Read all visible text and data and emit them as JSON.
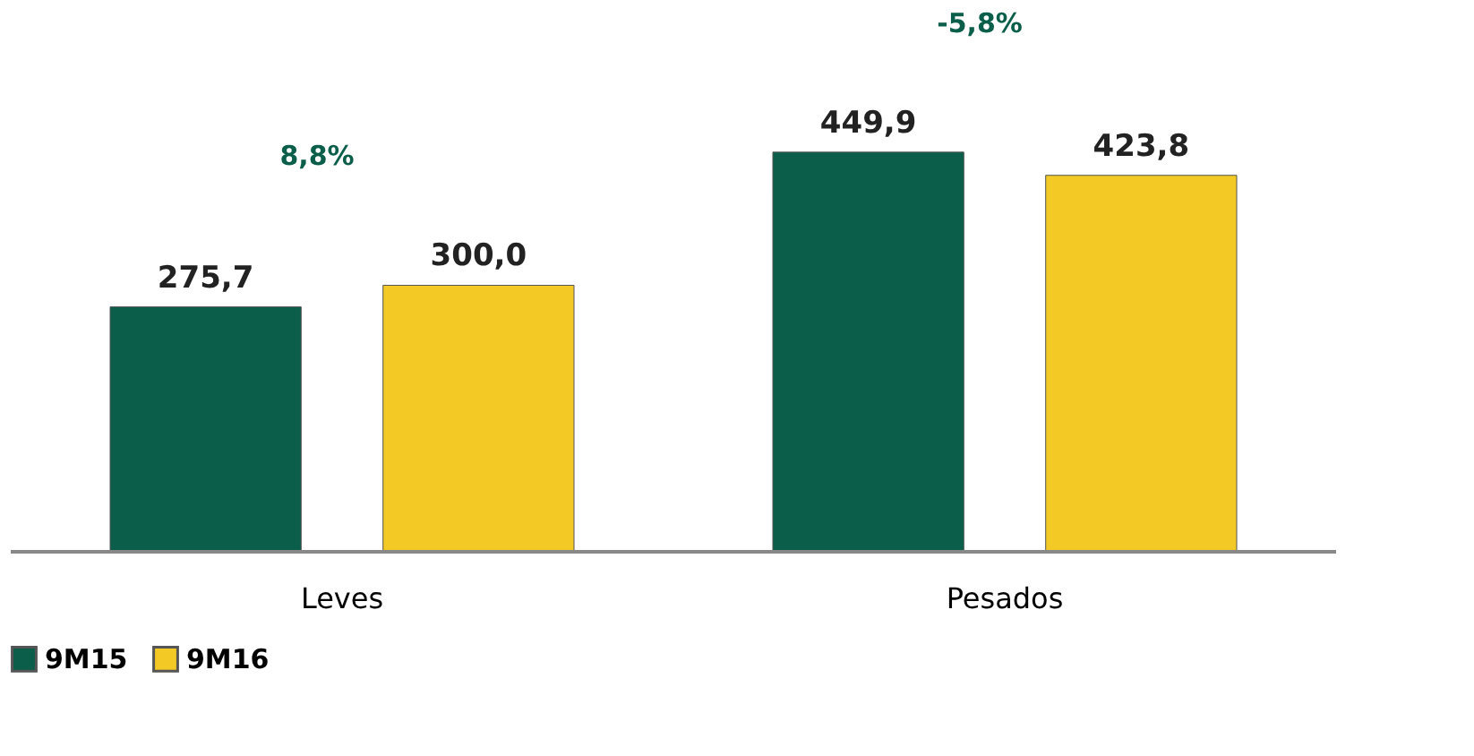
{
  "chart_data": {
    "type": "bar",
    "categories": [
      "Leves",
      "Pesados"
    ],
    "series": [
      {
        "name": "9M15",
        "color": "#0b5e4a",
        "values": [
          275.7,
          449.9
        ],
        "value_labels": [
          "275,7",
          "449,9"
        ]
      },
      {
        "name": "9M16",
        "color": "#f2c925",
        "values": [
          300.0,
          423.8
        ],
        "value_labels": [
          "300,0",
          "423,8"
        ]
      }
    ],
    "annotations": [
      "8,8%",
      "-5,8%"
    ],
    "legend": "bottom",
    "grid": false
  }
}
